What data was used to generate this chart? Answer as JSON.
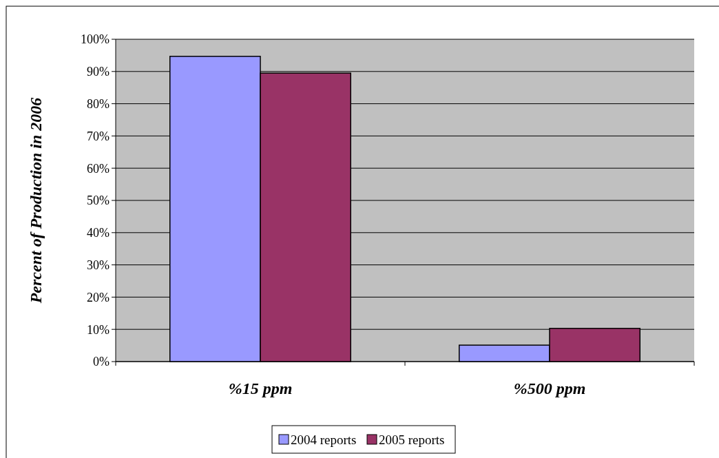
{
  "chart_data": {
    "type": "bar",
    "ylabel": "Percent of Production in 2006",
    "categories": [
      "%15 ppm",
      "%500 ppm"
    ],
    "series": [
      {
        "name": "2004 reports",
        "color": "#9999ff",
        "values": [
          94.7,
          5.1
        ]
      },
      {
        "name": "2005 reports",
        "color": "#993366",
        "values": [
          89.5,
          10.3
        ]
      }
    ],
    "ylim": [
      0,
      100
    ],
    "yticks": [
      {
        "value": 0,
        "label": "0%"
      },
      {
        "value": 10,
        "label": "10%"
      },
      {
        "value": 20,
        "label": "20%"
      },
      {
        "value": 30,
        "label": "30%"
      },
      {
        "value": 40,
        "label": "40%"
      },
      {
        "value": 50,
        "label": "50%"
      },
      {
        "value": 60,
        "label": "60%"
      },
      {
        "value": 70,
        "label": "70%"
      },
      {
        "value": 80,
        "label": "80%"
      },
      {
        "value": 90,
        "label": "90%"
      },
      {
        "value": 100,
        "label": "100%"
      }
    ],
    "grid": "y",
    "legend": "bottom"
  }
}
